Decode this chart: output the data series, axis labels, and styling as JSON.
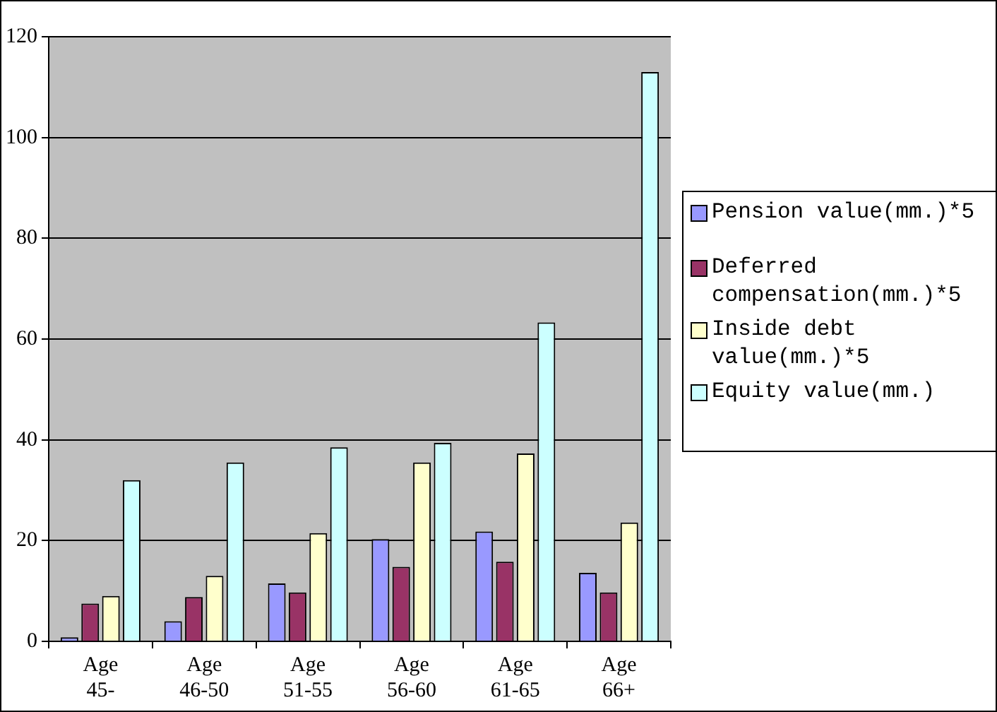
{
  "chart_data": {
    "type": "bar",
    "categories": [
      "Age 45-",
      "Age 46-50",
      "Age 51-55",
      "Age 56-60",
      "Age 61-65",
      "Age 66+"
    ],
    "series": [
      {
        "name": "Pension value(mm.)*5",
        "color": "#9999ff",
        "values": [
          0.8,
          4,
          11.5,
          20.3,
          21.8,
          13.6
        ]
      },
      {
        "name": "Deferred compensation(mm.)*5",
        "color": "#993366",
        "values": [
          7.5,
          8.8,
          9.7,
          14.8,
          15.8,
          9.7
        ]
      },
      {
        "name": "Inside debt value(mm.)*5",
        "color": "#ffffcc",
        "values": [
          9,
          13,
          21.5,
          35.5,
          37.3,
          23.6
        ]
      },
      {
        "name": "Equity value(mm.)",
        "color": "#ccffff",
        "values": [
          32,
          35.5,
          38.5,
          39.4,
          63.3,
          113
        ]
      }
    ],
    "ylim": [
      0,
      120
    ],
    "yticks": [
      0,
      20,
      40,
      60,
      80,
      100,
      120
    ],
    "grid": "y",
    "legend": "right"
  }
}
